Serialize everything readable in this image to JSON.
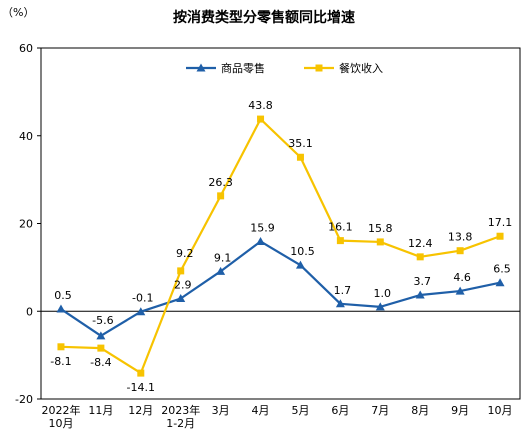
{
  "chart_data": {
    "type": "line",
    "title": "按消费类型分零售额同比增速",
    "ylabel": "（%）",
    "xlabel": "",
    "ylim": [
      -20,
      60
    ],
    "yticks": [
      -20,
      0,
      20,
      40,
      60
    ],
    "categories": [
      "2022年\n10月",
      "11月",
      "12月",
      "2023年\n1-2月",
      "3月",
      "4月",
      "5月",
      "6月",
      "7月",
      "8月",
      "9月",
      "10月"
    ],
    "series": [
      {
        "name": "商品零售",
        "color": "#1f5fa8",
        "marker": "triangle",
        "values": [
          0.5,
          -5.6,
          -0.1,
          2.9,
          9.1,
          15.9,
          10.5,
          1.7,
          1.0,
          3.7,
          4.6,
          6.5
        ],
        "labels": [
          "0.5",
          "-5.6",
          "-0.1",
          "2.9",
          "9.1",
          "15.9",
          "10.5",
          "1.7",
          "1.0",
          "3.7",
          "4.6",
          "6.5"
        ]
      },
      {
        "name": "餐饮收入",
        "color": "#f7c300",
        "marker": "square",
        "values": [
          -8.1,
          -8.4,
          -14.1,
          9.2,
          26.3,
          43.8,
          35.1,
          16.1,
          15.8,
          12.4,
          13.8,
          17.1
        ],
        "labels": [
          "-8.1",
          "-8.4",
          "-14.1",
          "9.2",
          "26.3",
          "43.8",
          "35.1",
          "16.1",
          "15.8",
          "12.4",
          "13.8",
          "17.1"
        ]
      }
    ],
    "legend": "top-left",
    "grid": false
  }
}
